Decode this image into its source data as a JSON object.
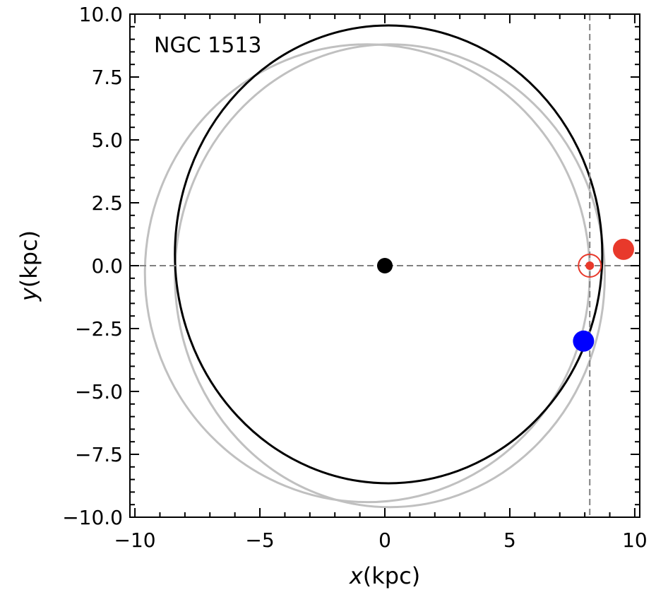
{
  "chart_data": {
    "type": "scatter",
    "title": "",
    "annotation": "NGC 1513",
    "xlabel_symbol": "x",
    "xlabel_unit": "(kpc)",
    "ylabel_symbol": "y",
    "ylabel_unit": "(kpc)",
    "xlim": [
      -10.2,
      10.2
    ],
    "ylim": [
      -10.0,
      10.0
    ],
    "x_ticks": [
      -10,
      -5,
      0,
      5,
      10
    ],
    "x_tick_labels": [
      "−10",
      "−5",
      "0",
      "5",
      "10"
    ],
    "y_ticks": [
      10.0,
      7.5,
      5.0,
      2.5,
      0.0,
      -2.5,
      -5.0,
      -7.5,
      -10.0
    ],
    "y_tick_labels": [
      "10.0",
      "7.5",
      "5.0",
      "2.5",
      "0.0",
      "−2.5",
      "−5.0",
      "−7.5",
      "−10.0"
    ],
    "x_minor_step": 1,
    "y_minor_step": 0.5,
    "reference_lines": {
      "horizontal_y": 0.0,
      "vertical_x": 8.2
    },
    "orbits": [
      {
        "name": "",
        "color": "#c0c0c0",
        "center": [
          -0.7,
          -0.3
        ],
        "radii": [
          8.9,
          9.1
        ]
      },
      {
        "name": "",
        "color": "#c0c0c0",
        "center": [
          0.2,
          -0.4
        ],
        "radii": [
          8.6,
          9.2
        ]
      },
      {
        "name": "",
        "color": "#000000",
        "center": [
          0.15,
          0.45
        ],
        "radii": [
          8.55,
          9.1
        ]
      }
    ],
    "points": [
      {
        "name": "",
        "x": 0.0,
        "y": 0.0,
        "color": "#000000"
      },
      {
        "name": "",
        "x": 9.55,
        "y": 0.65,
        "color": "#e8392b"
      },
      {
        "name": "",
        "x": 7.95,
        "y": -3.0,
        "color": "#0000ff"
      }
    ],
    "sun": {
      "x": 8.2,
      "y": 0.0,
      "color": "#e8392b"
    },
    "colors": {
      "reference_line": "#808080",
      "axes": "#000000"
    }
  }
}
